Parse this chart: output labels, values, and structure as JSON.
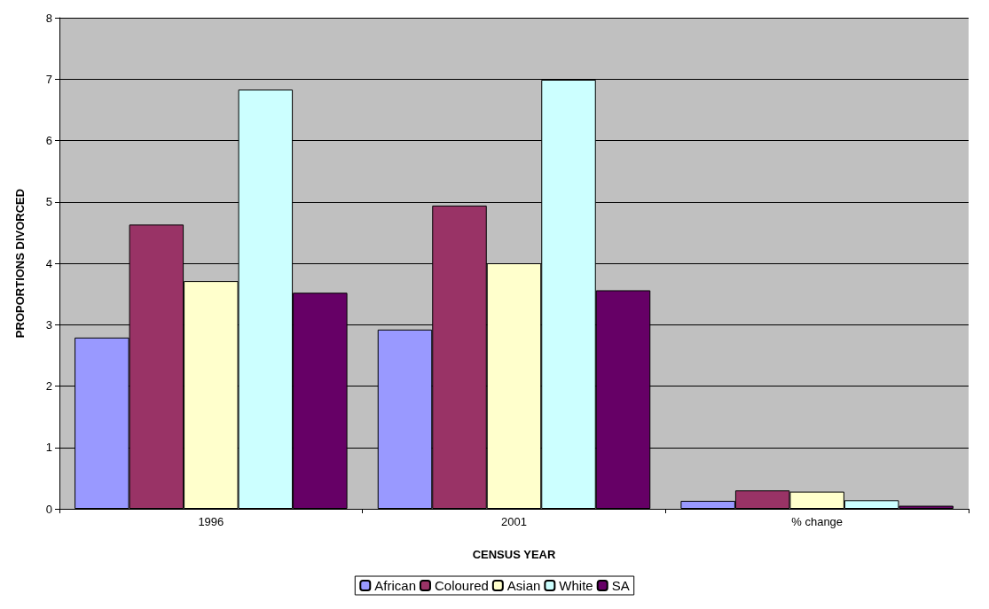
{
  "chart_data": {
    "type": "bar",
    "xlabel": "CENSUS YEAR",
    "ylabel": "PROPORTIONS DIVORCED",
    "categories": [
      "1996",
      "2001",
      "% change"
    ],
    "series": [
      {
        "name": "African",
        "color": "#9999ff",
        "values": [
          2.79,
          2.92,
          0.13
        ]
      },
      {
        "name": "Coloured",
        "color": "#993366",
        "values": [
          4.63,
          4.94,
          0.3
        ]
      },
      {
        "name": "Asian",
        "color": "#ffffcc",
        "values": [
          3.71,
          4.0,
          0.28
        ]
      },
      {
        "name": "White",
        "color": "#ccffff",
        "values": [
          6.83,
          6.99,
          0.14
        ]
      },
      {
        "name": "SA",
        "color": "#660066",
        "values": [
          3.52,
          3.56,
          0.05
        ]
      }
    ],
    "ylim": [
      0,
      8
    ],
    "yticks": [
      0,
      1,
      2,
      3,
      4,
      5,
      6,
      7,
      8
    ],
    "grid": "y",
    "legend": "bottom"
  }
}
